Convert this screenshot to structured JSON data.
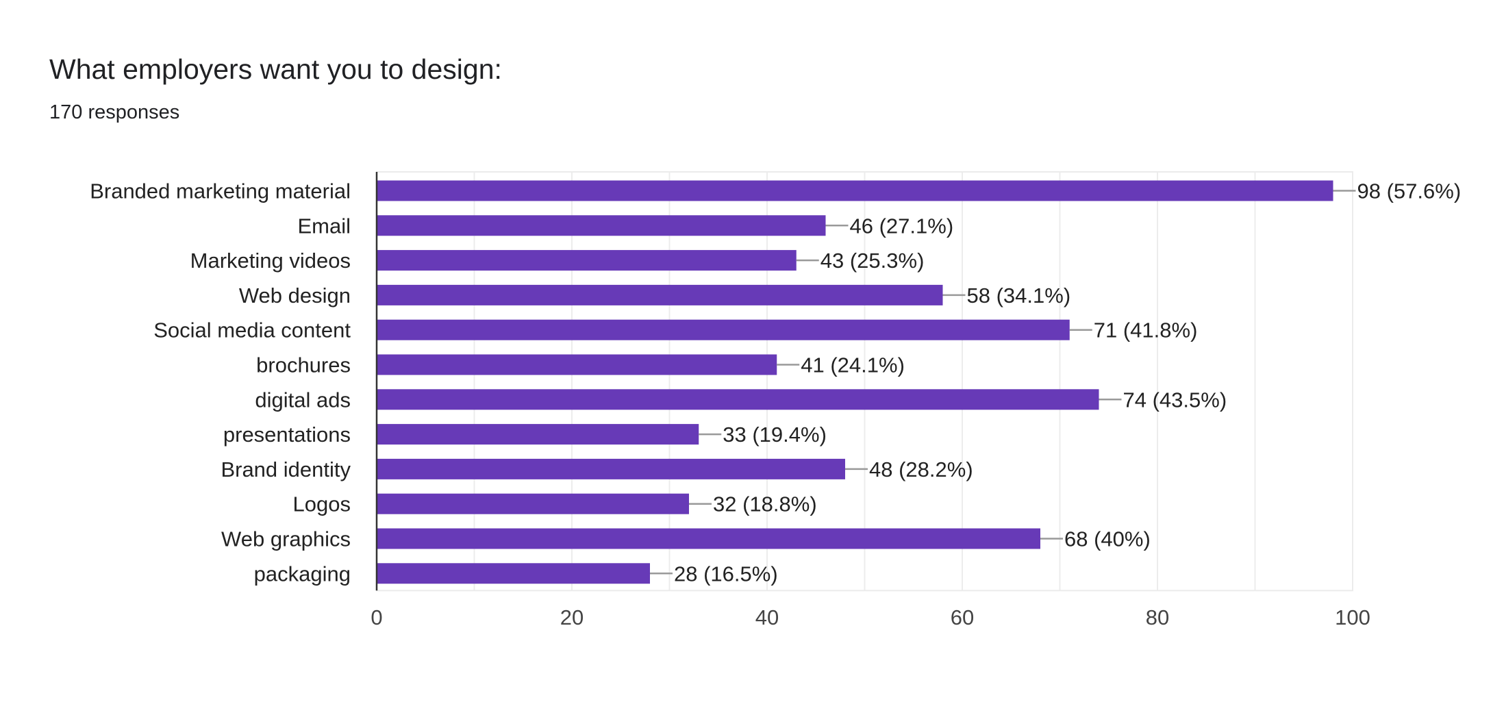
{
  "header": {
    "title": "What employers want you to design:",
    "subtitle": "170 responses"
  },
  "chart_data": {
    "type": "bar",
    "orientation": "horizontal",
    "title": "What employers want you to design:",
    "subtitle": "170 responses",
    "categories": [
      "Branded marketing material",
      "Email",
      "Marketing videos",
      "Web design",
      "Social media content",
      "brochures",
      "digital ads",
      "presentations",
      "Brand identity",
      "Logos",
      "Web graphics",
      "packaging"
    ],
    "values": [
      98,
      46,
      43,
      58,
      71,
      41,
      74,
      33,
      48,
      32,
      68,
      28
    ],
    "data_labels": [
      "98 (57.6%)",
      "46 (27.1%)",
      "43 (25.3%)",
      "58 (34.1%)",
      "71 (41.8%)",
      "41 (24.1%)",
      "74 (43.5%)",
      "33 (19.4%)",
      "48 (28.2%)",
      "32 (18.8%)",
      "68 (40%)",
      "28 (16.5%)"
    ],
    "xlim": [
      0,
      100
    ],
    "x_ticks": [
      "0",
      "20",
      "40",
      "60",
      "80",
      "100"
    ],
    "grid": true,
    "bar_color": "#673ab7",
    "xlabel": "",
    "ylabel": ""
  }
}
